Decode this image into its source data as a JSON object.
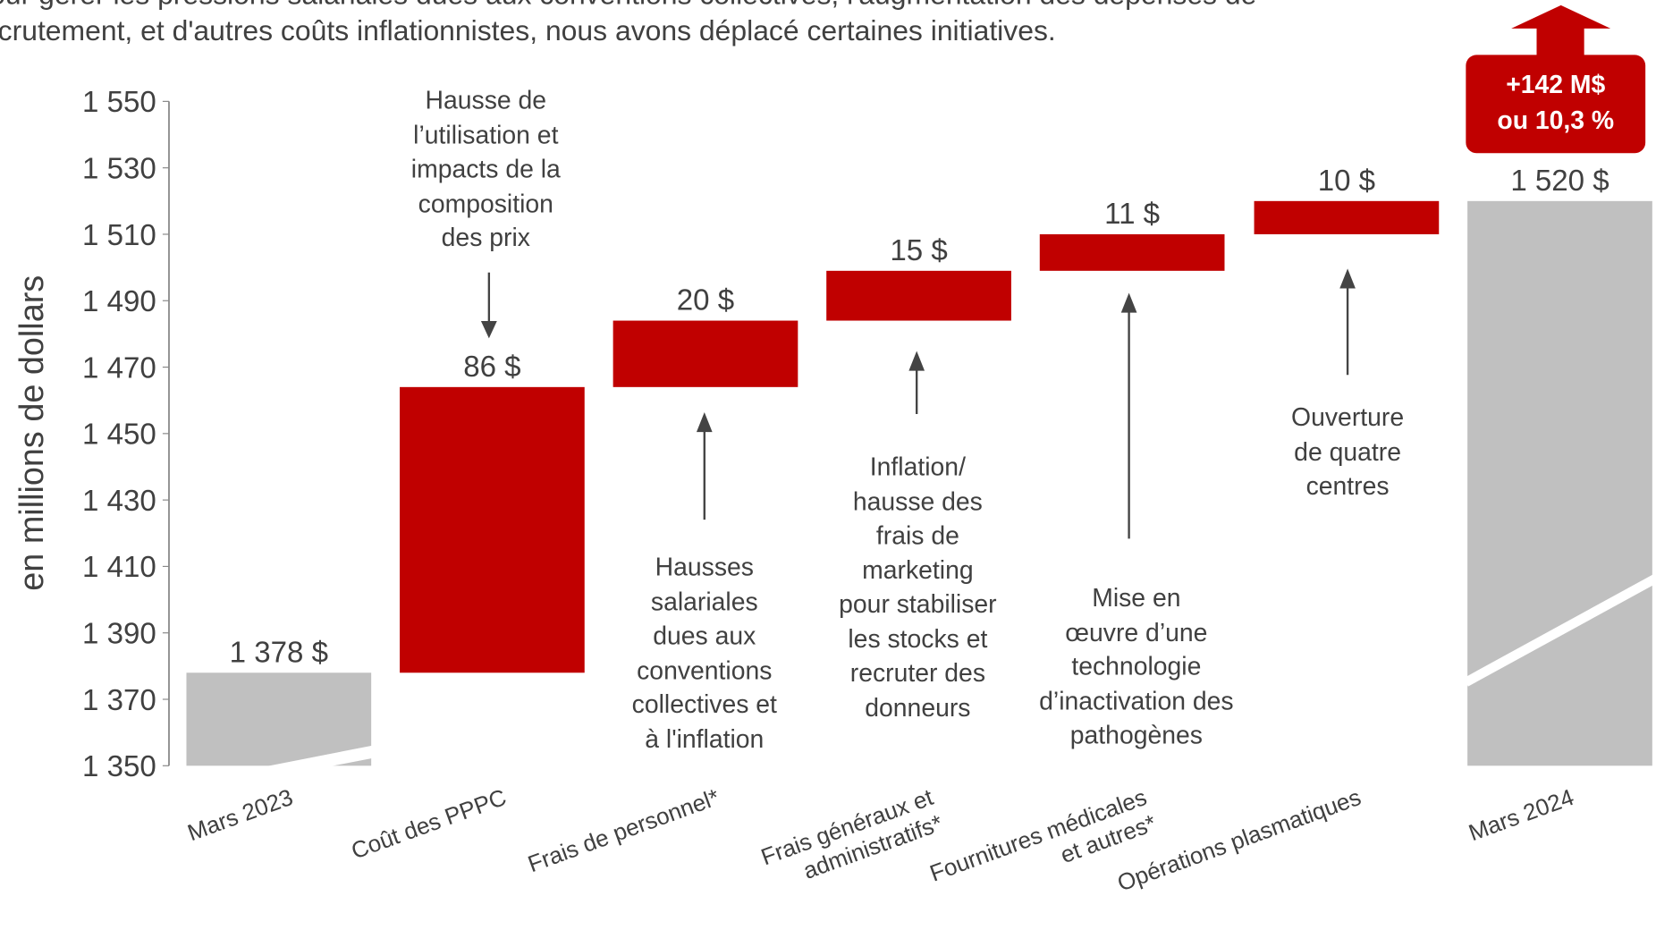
{
  "intro": [
    "our gérer les pressions salariales dues aux conventions collectives, l'augmentation des dépenses de",
    "crutement, et d'autres coûts inflationnistes, nous avons déplacé certaines initiatives."
  ],
  "chart_data": {
    "type": "waterfall",
    "ylabel": "en millions de dollars",
    "categories": [
      "Mars 2023",
      "Coût des PPPC",
      "Frais de personnel*",
      "Frais généraux et\nadministratifs*",
      "Fournitures médicales\net autres*",
      "Opérations plasmatiques",
      "Mars 2024"
    ],
    "values": [
      1378,
      86,
      20,
      15,
      11,
      10,
      1520
    ],
    "value_labels": [
      "1 378 $",
      "86 $",
      "20 $",
      "15 $",
      "11 $",
      "10 $",
      "1 520 $"
    ],
    "total_color": "#c0c0c0",
    "increase_color": "#c00000",
    "ylim": [
      1350,
      1550
    ],
    "yticks": [
      {
        "value": 1350,
        "label": "1 350"
      },
      {
        "value": 1370,
        "label": "1 370"
      },
      {
        "value": 1390,
        "label": "1 390"
      },
      {
        "value": 1410,
        "label": "1 410"
      },
      {
        "value": 1430,
        "label": "1 430"
      },
      {
        "value": 1450,
        "label": "1 450"
      },
      {
        "value": 1470,
        "label": "1 470"
      },
      {
        "value": 1490,
        "label": "1 490"
      },
      {
        "value": 1510,
        "label": "1 510"
      },
      {
        "value": 1530,
        "label": "1 530"
      },
      {
        "value": 1550,
        "label": "1 550"
      }
    ],
    "annotations": [
      "Hausse de\nl’utilisation et\nimpacts de la\ncomposition\ndes prix",
      "Hausses\nsalariales\ndues aux\nconventions\ncollectives et\nà l'inflation",
      "Inflation/\nhausse des\nfrais de\nmarketing\npour stabiliser\nles stocks et\nrecruter des\ndonneurs",
      "Mise en\nœuvre d’une\ntechnologie\nd’inactivation des\npathogènes",
      "Ouverture\nde quatre\ncentres"
    ],
    "badge": [
      "+142 M$",
      "ou 10,3 %"
    ]
  }
}
